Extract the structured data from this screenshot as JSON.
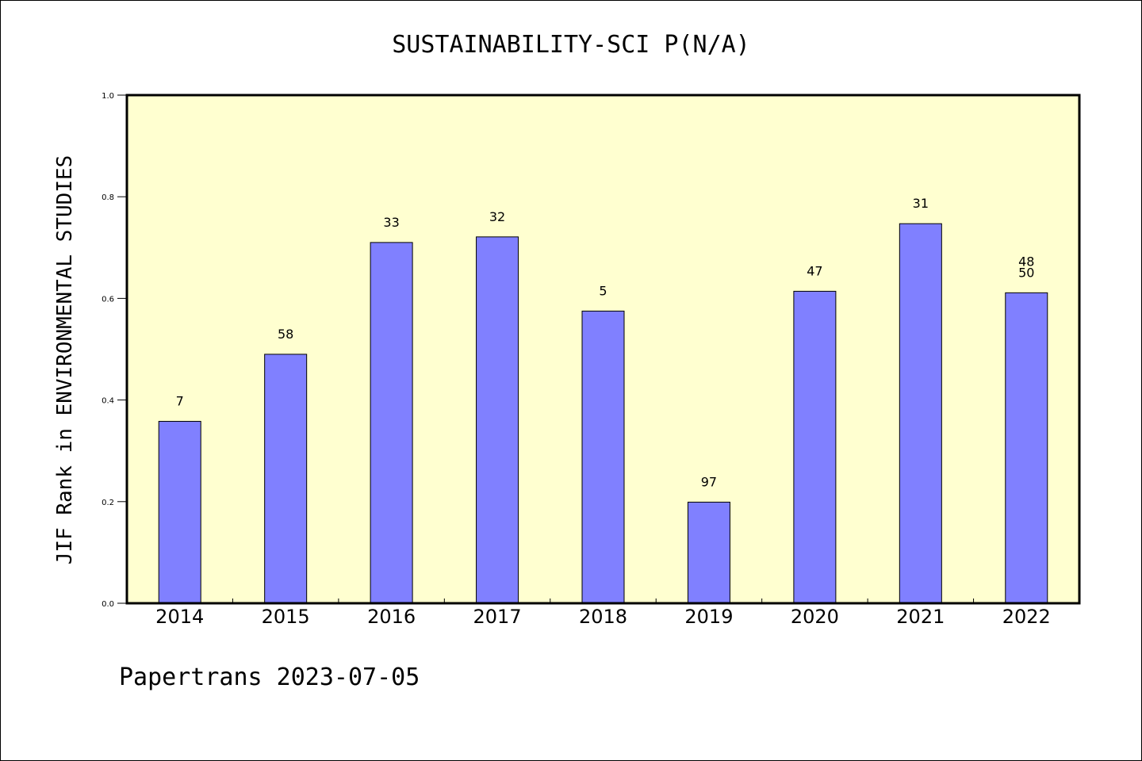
{
  "chart_data": {
    "type": "bar",
    "title": "SUSTAINABILITY-SCI P(N/A)",
    "xlabel": "",
    "ylabel": "JIF Rank in ENVIRONMENTAL STUDIES",
    "ylim": [
      0,
      1.0
    ],
    "yticks": [
      "0.0",
      "0.2",
      "0.4",
      "0.6",
      "0.8",
      "1.0"
    ],
    "categories": [
      "2014",
      "2015",
      "2016",
      "2017",
      "2018",
      "2019",
      "2020",
      "2021",
      "2022"
    ],
    "values": [
      0.358,
      0.49,
      0.71,
      0.721,
      0.575,
      0.199,
      0.614,
      0.747,
      0.611
    ],
    "bar_labels": [
      [
        "7"
      ],
      [
        "58"
      ],
      [
        "33"
      ],
      [
        "32"
      ],
      [
        "5"
      ],
      [
        "97"
      ],
      [
        "47"
      ],
      [
        "31"
      ],
      [
        "48",
        "50"
      ]
    ],
    "colors": {
      "plot_background": "#ffffd0",
      "bar_fill": "#8080ff",
      "bar_stroke": "#000000"
    },
    "grid": false
  },
  "footer": {
    "text": "Papertrans 2023-07-05"
  }
}
